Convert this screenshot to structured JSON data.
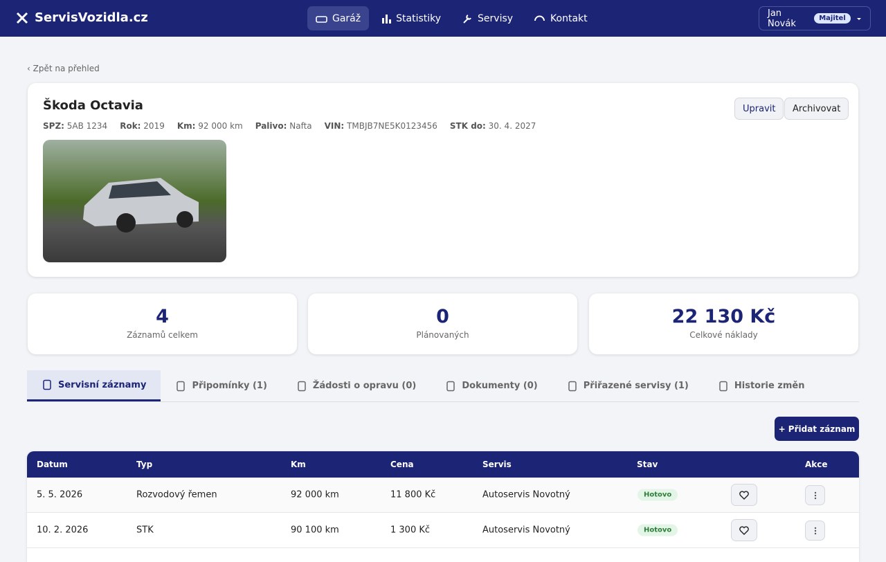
{
  "nav": {
    "brand": "ServisVozidla.cz",
    "links": [
      "Garáž",
      "Statistiky",
      "Servisy",
      "Kontakt"
    ],
    "user": "Jan Novák",
    "role": "Majitel"
  },
  "back": "‹ Zpět na přehled",
  "vehicle": {
    "title": "Škoda Octavia",
    "specs": [
      {
        "label": "SPZ:",
        "value": "5AB 1234"
      },
      {
        "label": "Rok:",
        "value": "2019"
      },
      {
        "label": "Km:",
        "value": "92 000 km"
      },
      {
        "label": "Palivo:",
        "value": "Nafta"
      },
      {
        "label": "VIN:",
        "value": "TMBJB7NE5K0123456"
      },
      {
        "label": "STK do:",
        "value": "30. 4. 2027"
      }
    ],
    "actions": [
      "Upravit",
      "Archivovat"
    ]
  },
  "stats": [
    {
      "value": "4",
      "label": "Záznamů celkem"
    },
    {
      "value": "0",
      "label": "Plánovaných"
    },
    {
      "value": "22 130 Kč",
      "label": "Celkové náklady"
    }
  ],
  "tabs": [
    "Servisní záznamy",
    "Připomínky (1)",
    "Žádosti o opravu (0)",
    "Dokumenty (0)",
    "Přiřazené servisy (1)",
    "Historie změn"
  ],
  "add_button": "+ Přidat záznam",
  "table": {
    "headers": [
      "Datum",
      "Typ",
      "Km",
      "Cena",
      "Servis",
      "Stav",
      "Akce"
    ],
    "rows": [
      [
        "5. 5. 2026",
        "Rozvodový řemen",
        "92 000 km",
        "11 800 Kč",
        "Autoservis Novotný",
        "Hotovo"
      ],
      [
        "10. 2. 2026",
        "STK",
        "90 100 km",
        "1 300 Kč",
        "Autoservis Novotný",
        "Hotovo"
      ]
    ]
  }
}
